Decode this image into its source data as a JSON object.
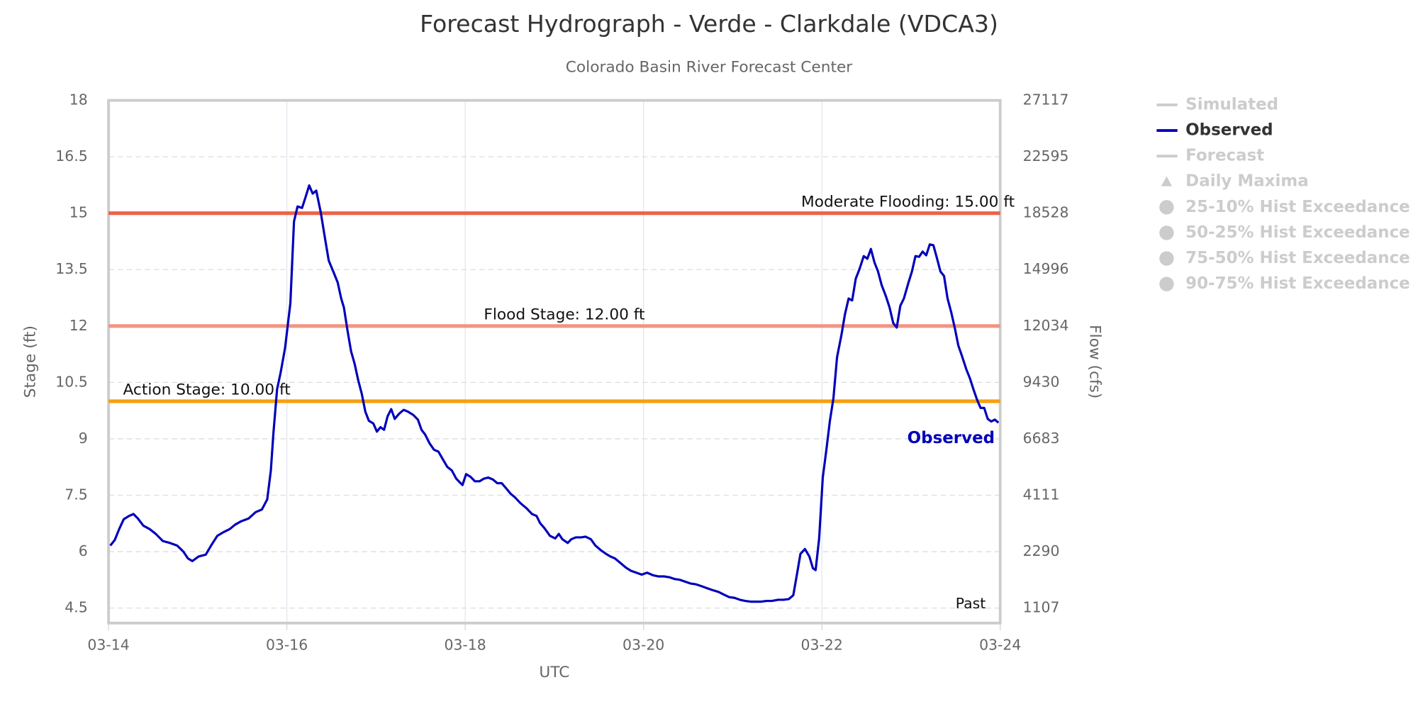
{
  "chart_data": {
    "type": "line",
    "title": "Forecast Hydrograph - Verde - Clarkdale (VDCA3)",
    "subtitle": "Colorado Basin River Forecast Center",
    "x_label": "UTC",
    "y_label": "Stage (ft)",
    "y2_label": "Flow (cfs)",
    "xlim": [
      0,
      10
    ],
    "xticks": [
      {
        "value": 0,
        "label": "03-14"
      },
      {
        "value": 2,
        "label": "03-16"
      },
      {
        "value": 4,
        "label": "03-18"
      },
      {
        "value": 6,
        "label": "03-20"
      },
      {
        "value": 8,
        "label": "03-22"
      },
      {
        "value": 10,
        "label": "03-24"
      }
    ],
    "ylim": [
      4.1,
      18
    ],
    "yticks": [
      4.5,
      6,
      7.5,
      9,
      10.5,
      12,
      13.5,
      15,
      16.5,
      18
    ],
    "y2ticks": [
      1107,
      2290,
      4111,
      6683,
      9430,
      12034,
      14996,
      18528,
      22595,
      27117
    ],
    "grid": true,
    "thresholds": [
      {
        "label": "Moderate Flooding: 15.00 ft",
        "value": 15,
        "color": "#ee6149"
      },
      {
        "label": "Flood Stage: 12.00 ft",
        "value": 12,
        "color": "#f39483"
      },
      {
        "label": "Action Stage: 10.00 ft",
        "value": 10,
        "color": "#f5a00f"
      }
    ],
    "annotation": "Past",
    "legend": [
      {
        "name": "Simulated",
        "symbol": "line",
        "active": false
      },
      {
        "name": "Observed",
        "symbol": "line",
        "active": true
      },
      {
        "name": "Forecast",
        "symbol": "line",
        "active": false
      },
      {
        "name": "Daily Maxima",
        "symbol": "triangle",
        "active": false
      },
      {
        "name": "25-10% Hist Exceedance",
        "symbol": "circle",
        "active": false
      },
      {
        "name": "50-25% Hist Exceedance",
        "symbol": "circle",
        "active": false
      },
      {
        "name": "75-50% Hist Exceedance",
        "symbol": "circle",
        "active": false
      },
      {
        "name": "90-75% Hist Exceedance",
        "symbol": "circle",
        "active": false
      }
    ],
    "x": [
      0.02,
      0.07,
      0.12,
      0.17,
      0.23,
      0.28,
      0.33,
      0.39,
      0.46,
      0.53,
      0.61,
      0.69,
      0.77,
      0.84,
      0.89,
      0.94,
      1.01,
      1.09,
      1.15,
      1.22,
      1.29,
      1.36,
      1.42,
      1.49,
      1.57,
      1.65,
      1.72,
      1.78,
      1.82,
      1.85,
      1.89,
      1.93,
      1.98,
      2.04,
      2.08,
      2.12,
      2.17,
      2.21,
      2.25,
      2.29,
      2.33,
      2.38,
      2.43,
      2.47,
      2.52,
      2.57,
      2.61,
      2.64,
      2.68,
      2.72,
      2.76,
      2.8,
      2.84,
      2.88,
      2.92,
      2.97,
      3.01,
      3.05,
      3.09,
      3.13,
      3.17,
      3.21,
      3.26,
      3.31,
      3.36,
      3.42,
      3.47,
      3.51,
      3.55,
      3.6,
      3.65,
      3.7,
      3.75,
      3.8,
      3.85,
      3.9,
      3.97,
      4.01,
      4.06,
      4.11,
      4.16,
      4.21,
      4.26,
      4.31,
      4.36,
      4.41,
      4.46,
      4.51,
      4.56,
      4.62,
      4.69,
      4.75,
      4.8,
      4.84,
      4.89,
      4.95,
      5.01,
      5.05,
      5.09,
      5.15,
      5.19,
      5.24,
      5.3,
      5.35,
      5.41,
      5.46,
      5.52,
      5.58,
      5.63,
      5.68,
      5.74,
      5.8,
      5.86,
      5.92,
      5.98,
      6.04,
      6.11,
      6.17,
      6.23,
      6.29,
      6.35,
      6.41,
      6.47,
      6.53,
      6.59,
      6.65,
      6.71,
      6.77,
      6.84,
      6.9,
      6.96,
      7.02,
      7.08,
      7.14,
      7.2,
      7.26,
      7.32,
      7.38,
      7.44,
      7.51,
      7.57,
      7.63,
      7.68,
      7.72,
      7.76,
      7.81,
      7.86,
      7.9,
      7.93,
      7.97,
      8.01,
      8.05,
      8.09,
      8.13,
      8.17,
      8.22,
      8.26,
      8.3,
      8.34,
      8.38,
      8.42,
      8.47,
      8.51,
      8.55,
      8.59,
      8.63,
      8.67,
      8.72,
      8.76,
      8.8,
      8.84,
      8.88,
      8.92,
      8.97,
      9.01,
      9.05,
      9.09,
      9.13,
      9.17,
      9.21,
      9.25,
      9.29,
      9.33,
      9.37,
      9.41,
      9.45,
      9.49,
      9.53,
      9.57,
      9.62,
      9.66,
      9.7,
      9.74,
      9.78,
      9.82,
      9.86,
      9.9,
      9.94,
      9.98
    ],
    "series": [
      {
        "name": "Observed",
        "color": "#0000bb",
        "values": [
          6.16,
          6.31,
          6.6,
          6.86,
          6.95,
          7.0,
          6.88,
          6.69,
          6.6,
          6.47,
          6.28,
          6.23,
          6.16,
          6.0,
          5.82,
          5.75,
          5.87,
          5.92,
          6.16,
          6.42,
          6.52,
          6.6,
          6.72,
          6.81,
          6.88,
          7.05,
          7.12,
          7.39,
          8.16,
          9.17,
          10.32,
          10.76,
          11.41,
          12.61,
          14.78,
          15.18,
          15.14,
          15.43,
          15.74,
          15.52,
          15.6,
          15.02,
          14.3,
          13.74,
          13.45,
          13.16,
          12.73,
          12.49,
          11.89,
          11.33,
          11.0,
          10.56,
          10.2,
          9.72,
          9.48,
          9.41,
          9.19,
          9.31,
          9.24,
          9.6,
          9.79,
          9.53,
          9.67,
          9.77,
          9.72,
          9.63,
          9.51,
          9.24,
          9.12,
          8.88,
          8.71,
          8.66,
          8.45,
          8.25,
          8.16,
          7.94,
          7.77,
          8.06,
          7.99,
          7.87,
          7.87,
          7.94,
          7.97,
          7.92,
          7.82,
          7.82,
          7.68,
          7.54,
          7.44,
          7.29,
          7.15,
          7.0,
          6.95,
          6.76,
          6.62,
          6.42,
          6.35,
          6.47,
          6.33,
          6.23,
          6.33,
          6.38,
          6.38,
          6.4,
          6.33,
          6.16,
          6.04,
          5.94,
          5.87,
          5.82,
          5.7,
          5.58,
          5.49,
          5.44,
          5.39,
          5.44,
          5.37,
          5.34,
          5.34,
          5.32,
          5.27,
          5.25,
          5.2,
          5.15,
          5.13,
          5.08,
          5.03,
          4.98,
          4.93,
          4.86,
          4.79,
          4.77,
          4.72,
          4.69,
          4.67,
          4.67,
          4.67,
          4.69,
          4.69,
          4.72,
          4.72,
          4.74,
          4.84,
          5.39,
          5.94,
          6.07,
          5.87,
          5.56,
          5.51,
          6.35,
          7.97,
          8.69,
          9.48,
          10.08,
          11.17,
          11.77,
          12.32,
          12.73,
          12.68,
          13.26,
          13.5,
          13.86,
          13.79,
          14.05,
          13.69,
          13.45,
          13.09,
          12.78,
          12.49,
          12.08,
          11.96,
          12.54,
          12.73,
          13.14,
          13.45,
          13.86,
          13.84,
          13.98,
          13.88,
          14.17,
          14.15,
          13.81,
          13.45,
          13.33,
          12.73,
          12.37,
          11.96,
          11.48,
          11.21,
          10.85,
          10.61,
          10.32,
          10.04,
          9.82,
          9.82,
          9.53,
          9.46,
          9.51,
          9.43
        ]
      }
    ]
  }
}
